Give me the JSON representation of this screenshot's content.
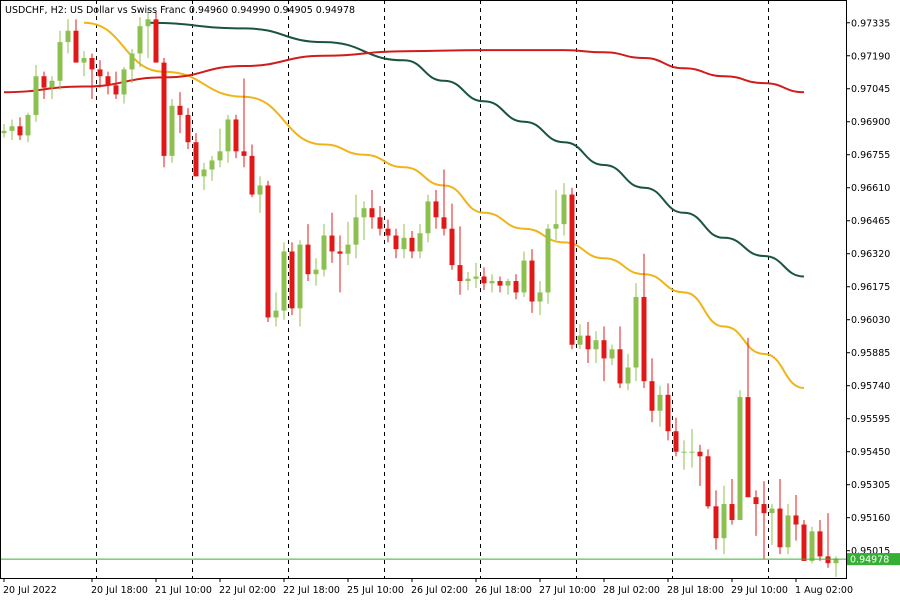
{
  "header": {
    "symbol_line": "USDCHF, H2:  US Dollar vs Swiss Franc  0.94960 0.94990 0.94905 0.94978"
  },
  "colors": {
    "background": "#ffffff",
    "frame": "#000000",
    "bull_candle": "#8cc152",
    "bear_candle": "#e01818",
    "ma_fast": "#f0b418",
    "ma_mid": "#1a5440",
    "ma_slow": "#d01c1c",
    "price_line": "#35b035",
    "price_label_bg": "#35b035",
    "price_label_text": "#ffffff",
    "separator": "#000000"
  },
  "chart_data": {
    "type": "candlestick",
    "symbol": "USDCHF",
    "timeframe": "H2",
    "last_price": "0.94978",
    "ylim": [
      0.94895,
      0.97435
    ],
    "y_ticks": [
      "0.97335",
      "0.97190",
      "0.97045",
      "0.96900",
      "0.96755",
      "0.96610",
      "0.96465",
      "0.96320",
      "0.96175",
      "0.96030",
      "0.95885",
      "0.95740",
      "0.95595",
      "0.95450",
      "0.95305",
      "0.95160",
      "0.95015"
    ],
    "x_labels": [
      {
        "label": "20 Jul 2022",
        "index": 0
      },
      {
        "label": "20 Jul 18:00",
        "index": 11
      },
      {
        "label": "21 Jul 10:00",
        "index": 19
      },
      {
        "label": "22 Jul 02:00",
        "index": 27
      },
      {
        "label": "22 Jul 18:00",
        "index": 35
      },
      {
        "label": "25 Jul 10:00",
        "index": 43
      },
      {
        "label": "26 Jul 02:00",
        "index": 51
      },
      {
        "label": "26 Jul 18:00",
        "index": 59
      },
      {
        "label": "27 Jul 10:00",
        "index": 67
      },
      {
        "label": "28 Jul 02:00",
        "index": 75
      },
      {
        "label": "28 Jul 18:00",
        "index": 83
      },
      {
        "label": "29 Jul 10:00",
        "index": 91
      },
      {
        "label": "1 Aug 02:00",
        "index": 99
      }
    ],
    "day_separators": [
      11,
      23,
      35,
      47,
      59,
      71,
      83,
      95
    ],
    "candles": [
      [
        0.9685,
        0.9689,
        0.9683,
        0.9686
      ],
      [
        0.9686,
        0.9691,
        0.9682,
        0.9688
      ],
      [
        0.9688,
        0.9692,
        0.9682,
        0.9684
      ],
      [
        0.9684,
        0.9694,
        0.9681,
        0.9693
      ],
      [
        0.9693,
        0.9715,
        0.969,
        0.971
      ],
      [
        0.971,
        0.9712,
        0.97,
        0.9705
      ],
      [
        0.9705,
        0.971,
        0.97,
        0.9708
      ],
      [
        0.9708,
        0.973,
        0.9704,
        0.9725
      ],
      [
        0.9725,
        0.9735,
        0.972,
        0.973
      ],
      [
        0.973,
        0.9735,
        0.9718,
        0.9716
      ],
      [
        0.9716,
        0.9721,
        0.971,
        0.9718
      ],
      [
        0.9718,
        0.972,
        0.97,
        0.9713
      ],
      [
        0.9713,
        0.9717,
        0.9705,
        0.971
      ],
      [
        0.971,
        0.9712,
        0.9702,
        0.9706
      ],
      [
        0.9706,
        0.9712,
        0.97,
        0.9702
      ],
      [
        0.9702,
        0.9714,
        0.9698,
        0.9713
      ],
      [
        0.9713,
        0.9722,
        0.9707,
        0.972
      ],
      [
        0.972,
        0.9736,
        0.9714,
        0.9732
      ],
      [
        0.9732,
        0.974,
        0.9718,
        0.9735
      ],
      [
        0.9735,
        0.9738,
        0.9716,
        0.9716
      ],
      [
        0.9716,
        0.9718,
        0.967,
        0.9675
      ],
      [
        0.9675,
        0.97,
        0.9672,
        0.9697
      ],
      [
        0.9697,
        0.9703,
        0.9685,
        0.9693
      ],
      [
        0.9693,
        0.9696,
        0.9678,
        0.9681
      ],
      [
        0.9681,
        0.9685,
        0.9666,
        0.9666
      ],
      [
        0.9666,
        0.9672,
        0.966,
        0.9669
      ],
      [
        0.9669,
        0.9675,
        0.9664,
        0.9673
      ],
      [
        0.9673,
        0.9687,
        0.967,
        0.9677
      ],
      [
        0.9677,
        0.9693,
        0.9672,
        0.9691
      ],
      [
        0.9691,
        0.9693,
        0.9674,
        0.9677
      ],
      [
        0.9677,
        0.9709,
        0.967,
        0.9675
      ],
      [
        0.9675,
        0.968,
        0.9657,
        0.9658
      ],
      [
        0.9658,
        0.9666,
        0.965,
        0.9662
      ],
      [
        0.9662,
        0.9664,
        0.9602,
        0.9604
      ],
      [
        0.9604,
        0.9615,
        0.96,
        0.9607
      ],
      [
        0.9607,
        0.9637,
        0.9603,
        0.9633
      ],
      [
        0.9633,
        0.9637,
        0.9605,
        0.9608
      ],
      [
        0.9608,
        0.9638,
        0.96,
        0.9636
      ],
      [
        0.9636,
        0.9645,
        0.962,
        0.9623
      ],
      [
        0.9623,
        0.963,
        0.9618,
        0.9625
      ],
      [
        0.9625,
        0.9645,
        0.9622,
        0.964
      ],
      [
        0.964,
        0.965,
        0.9628,
        0.9633
      ],
      [
        0.9633,
        0.964,
        0.9615,
        0.9632
      ],
      [
        0.9632,
        0.9646,
        0.9627,
        0.9636
      ],
      [
        0.9636,
        0.9658,
        0.963,
        0.9648
      ],
      [
        0.9648,
        0.9655,
        0.9638,
        0.9652
      ],
      [
        0.9652,
        0.966,
        0.9643,
        0.9648
      ],
      [
        0.9648,
        0.9653,
        0.964,
        0.9643
      ],
      [
        0.9643,
        0.9647,
        0.9637,
        0.964
      ],
      [
        0.964,
        0.9643,
        0.963,
        0.9634
      ],
      [
        0.9634,
        0.9645,
        0.963,
        0.9639
      ],
      [
        0.9639,
        0.9642,
        0.963,
        0.9633
      ],
      [
        0.9633,
        0.9645,
        0.963,
        0.9641
      ],
      [
        0.9641,
        0.9658,
        0.9637,
        0.9655
      ],
      [
        0.9655,
        0.966,
        0.9643,
        0.9648
      ],
      [
        0.9648,
        0.9669,
        0.964,
        0.9643
      ],
      [
        0.9643,
        0.9654,
        0.9625,
        0.9627
      ],
      [
        0.9627,
        0.9644,
        0.9614,
        0.962
      ],
      [
        0.962,
        0.9624,
        0.9616,
        0.9621
      ],
      [
        0.9621,
        0.9628,
        0.9617,
        0.9622
      ],
      [
        0.9622,
        0.9626,
        0.9616,
        0.9619
      ],
      [
        0.9619,
        0.9623,
        0.9615,
        0.962
      ],
      [
        0.962,
        0.9622,
        0.9615,
        0.9618
      ],
      [
        0.9618,
        0.9621,
        0.9614,
        0.962
      ],
      [
        0.962,
        0.9623,
        0.9612,
        0.9615
      ],
      [
        0.9615,
        0.9633,
        0.9613,
        0.9629
      ],
      [
        0.9629,
        0.9634,
        0.9606,
        0.9611
      ],
      [
        0.9611,
        0.962,
        0.9605,
        0.9615
      ],
      [
        0.9615,
        0.9645,
        0.961,
        0.9643
      ],
      [
        0.9643,
        0.966,
        0.9638,
        0.9645
      ],
      [
        0.9645,
        0.9663,
        0.964,
        0.9658
      ],
      [
        0.9658,
        0.9661,
        0.959,
        0.9592
      ],
      [
        0.9592,
        0.9601,
        0.959,
        0.9596
      ],
      [
        0.9596,
        0.9602,
        0.9584,
        0.959
      ],
      [
        0.959,
        0.9598,
        0.9584,
        0.9594
      ],
      [
        0.9594,
        0.96,
        0.9576,
        0.9586
      ],
      [
        0.9586,
        0.9592,
        0.9583,
        0.959
      ],
      [
        0.959,
        0.96,
        0.9573,
        0.9575
      ],
      [
        0.9575,
        0.9588,
        0.9572,
        0.9582
      ],
      [
        0.9582,
        0.9619,
        0.9576,
        0.9613
      ],
      [
        0.9613,
        0.9632,
        0.9573,
        0.9576
      ],
      [
        0.9576,
        0.9586,
        0.9558,
        0.9563
      ],
      [
        0.9563,
        0.9574,
        0.9556,
        0.957
      ],
      [
        0.957,
        0.9575,
        0.955,
        0.9554
      ],
      [
        0.9554,
        0.956,
        0.9543,
        0.9545
      ],
      [
        0.9545,
        0.955,
        0.9537,
        0.9545
      ],
      [
        0.9545,
        0.9555,
        0.9538,
        0.9545
      ],
      [
        0.9545,
        0.9548,
        0.953,
        0.9543
      ],
      [
        0.9543,
        0.9546,
        0.952,
        0.9521
      ],
      [
        0.9521,
        0.9528,
        0.9502,
        0.9507
      ],
      [
        0.9507,
        0.953,
        0.95,
        0.9522
      ],
      [
        0.9522,
        0.9533,
        0.9513,
        0.9515
      ],
      [
        0.9515,
        0.9572,
        0.9515,
        0.9569
      ],
      [
        0.9569,
        0.9595,
        0.9525,
        0.9525
      ],
      [
        0.9525,
        0.9528,
        0.9508,
        0.9522
      ],
      [
        0.9522,
        0.9532,
        0.9498,
        0.9518
      ],
      [
        0.9518,
        0.9522,
        0.9504,
        0.952
      ],
      [
        0.952,
        0.9533,
        0.95,
        0.9503
      ],
      [
        0.9503,
        0.9522,
        0.95,
        0.9517
      ],
      [
        0.9517,
        0.9526,
        0.9506,
        0.9513
      ],
      [
        0.9513,
        0.9515,
        0.9497,
        0.9497
      ],
      [
        0.9497,
        0.9512,
        0.9496,
        0.951
      ],
      [
        0.951,
        0.9515,
        0.9497,
        0.9499
      ],
      [
        0.9499,
        0.9518,
        0.9494,
        0.9496
      ],
      [
        0.9496,
        0.9499,
        0.949,
        0.9498
      ]
    ],
    "moving_averages": [
      {
        "role": "fast",
        "points": [
          [
            10,
            0.97335
          ],
          [
            20,
            0.9712
          ],
          [
            30,
            0.9701
          ],
          [
            40,
            0.968
          ],
          [
            45,
            0.96755
          ],
          [
            50,
            0.967
          ],
          [
            55,
            0.9662
          ],
          [
            60,
            0.965
          ],
          [
            65,
            0.9643
          ],
          [
            70,
            0.9637
          ],
          [
            75,
            0.963
          ],
          [
            80,
            0.9623
          ],
          [
            85,
            0.9615
          ],
          [
            90,
            0.96
          ],
          [
            95,
            0.9588
          ],
          [
            100,
            0.9573
          ]
        ]
      },
      {
        "role": "mid",
        "points": [
          [
            18,
            0.97335
          ],
          [
            30,
            0.9731
          ],
          [
            40,
            0.9725
          ],
          [
            50,
            0.9717
          ],
          [
            55,
            0.9708
          ],
          [
            60,
            0.9699
          ],
          [
            65,
            0.969
          ],
          [
            70,
            0.9681
          ],
          [
            75,
            0.9671
          ],
          [
            80,
            0.9661
          ],
          [
            85,
            0.965
          ],
          [
            90,
            0.9639
          ],
          [
            95,
            0.9631
          ],
          [
            100,
            0.9622
          ]
        ]
      },
      {
        "role": "slow",
        "points": [
          [
            0,
            0.9703
          ],
          [
            10,
            0.97055
          ],
          [
            20,
            0.97095
          ],
          [
            30,
            0.97145
          ],
          [
            40,
            0.9719
          ],
          [
            50,
            0.9721
          ],
          [
            60,
            0.97215
          ],
          [
            70,
            0.97215
          ],
          [
            75,
            0.97205
          ],
          [
            80,
            0.9718
          ],
          [
            85,
            0.97135
          ],
          [
            90,
            0.971
          ],
          [
            95,
            0.9707
          ],
          [
            100,
            0.9703
          ]
        ]
      }
    ]
  }
}
